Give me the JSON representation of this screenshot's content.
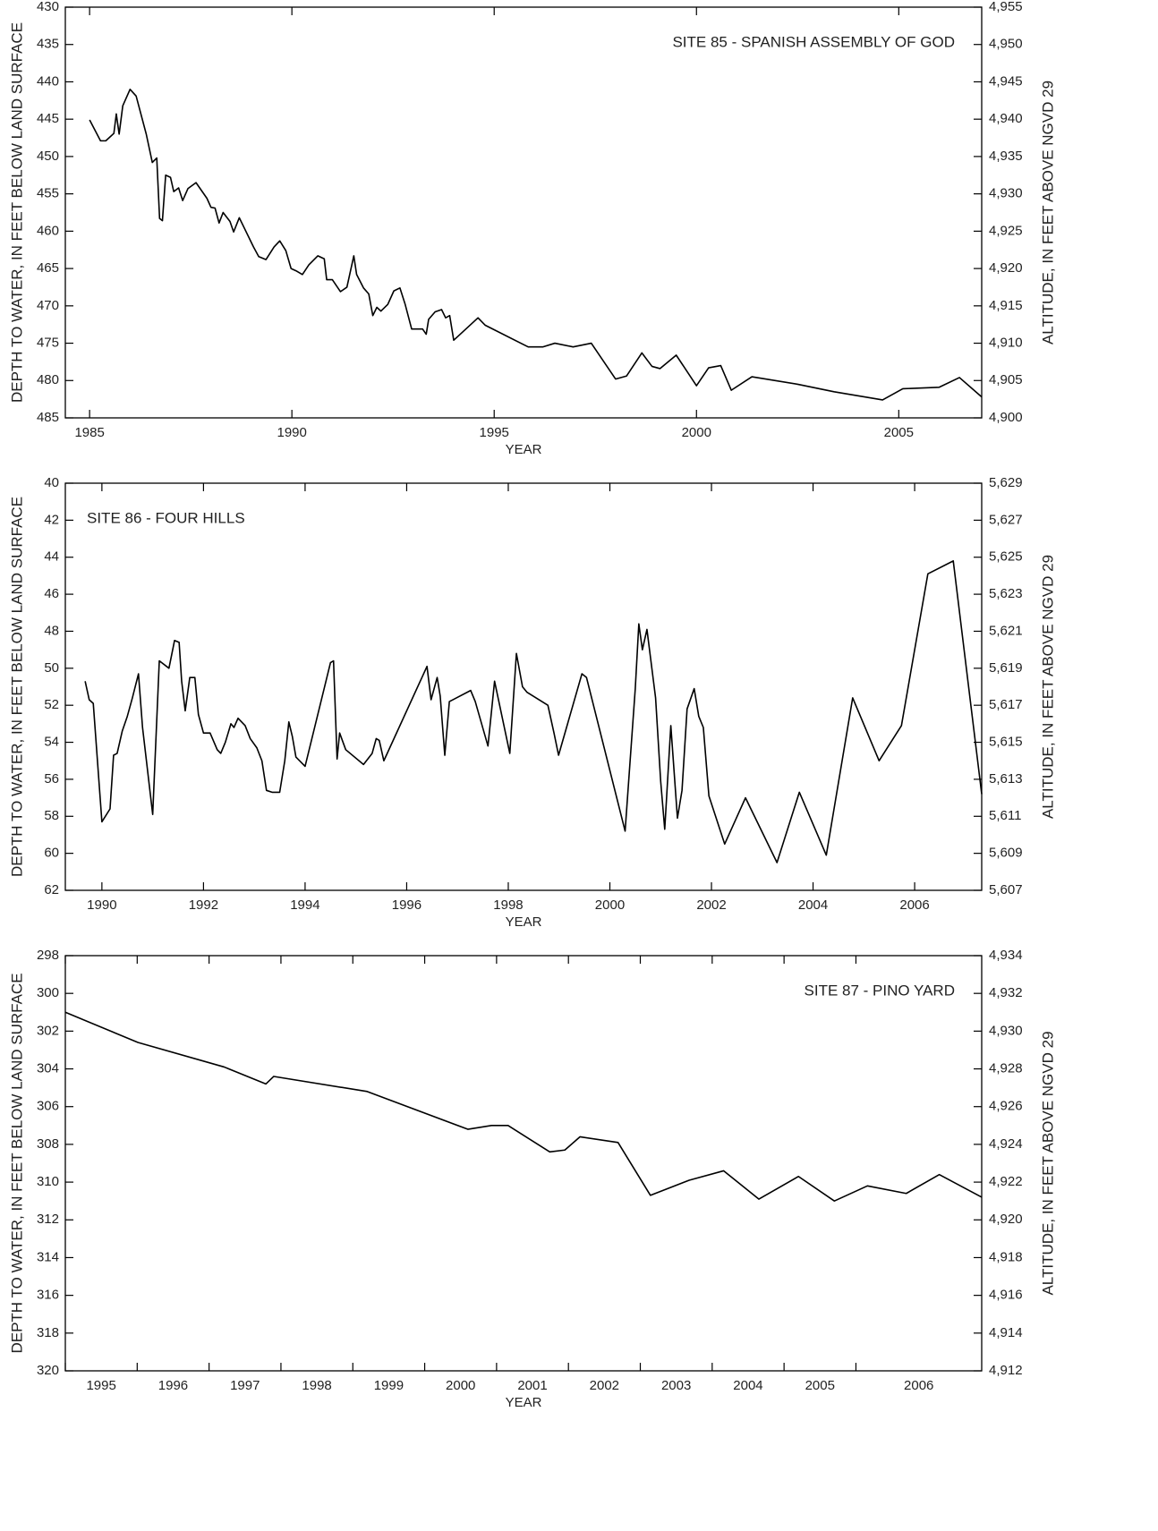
{
  "chart_data": [
    {
      "type": "line",
      "annotation": "SITE 85 - SPANISH ASSEMBLY OF GOD",
      "annotation_position": "right",
      "xlabel": "YEAR",
      "ylabel": "DEPTH TO WATER, IN FEET BELOW LAND SURFACE",
      "y2label": "ALTITUDE, IN FEET ABOVE NGVD 29",
      "color": "#000000",
      "xlim": [
        1984.4,
        2007.05
      ],
      "xticks": [
        1985,
        1990,
        1995,
        2000,
        2005
      ],
      "ylim": [
        485,
        430
      ],
      "yticks": [
        430,
        435,
        440,
        445,
        450,
        455,
        460,
        465,
        470,
        475,
        480,
        485
      ],
      "y2lim": [
        4900,
        4955
      ],
      "y2ticks": [
        {
          "value": 4955,
          "label": "4,955"
        },
        {
          "value": 4950,
          "label": "4,950"
        },
        {
          "value": 4945,
          "label": "4,945"
        },
        {
          "value": 4940,
          "label": "4,940"
        },
        {
          "value": 4935,
          "label": "4,935"
        },
        {
          "value": 4930,
          "label": "4,930"
        },
        {
          "value": 4925,
          "label": "4,925"
        },
        {
          "value": 4920,
          "label": "4,920"
        },
        {
          "value": 4915,
          "label": "4,915"
        },
        {
          "value": 4910,
          "label": "4,910"
        },
        {
          "value": 4905,
          "label": "4,905"
        },
        {
          "value": 4900,
          "label": "4,900"
        }
      ],
      "x": [
        1985.0,
        1985.27,
        1985.4,
        1985.6,
        1985.66,
        1985.73,
        1985.82,
        1986.0,
        1986.15,
        1986.4,
        1986.55,
        1986.66,
        1986.73,
        1986.8,
        1986.88,
        1987.0,
        1987.08,
        1987.2,
        1987.3,
        1987.43,
        1987.63,
        1987.9,
        1988.0,
        1988.1,
        1988.2,
        1988.3,
        1988.47,
        1988.56,
        1988.7,
        1989.05,
        1989.18,
        1989.36,
        1989.56,
        1989.7,
        1989.85,
        1989.98,
        1990.1,
        1990.26,
        1990.42,
        1990.64,
        1990.8,
        1990.86,
        1991.0,
        1991.2,
        1991.36,
        1991.53,
        1991.6,
        1991.77,
        1991.9,
        1992.0,
        1992.1,
        1992.2,
        1992.37,
        1992.52,
        1992.67,
        1992.8,
        1992.96,
        1993.23,
        1993.32,
        1993.38,
        1993.54,
        1993.7,
        1993.8,
        1993.9,
        1994.0,
        1994.6,
        1994.78,
        1995.84,
        1996.2,
        1996.5,
        1996.95,
        1997.4,
        1998.0,
        1998.27,
        1998.65,
        1998.9,
        1999.1,
        1999.5,
        2000.0,
        2000.3,
        2000.6,
        2000.86,
        2001.37,
        2002.5,
        2003.4,
        2004.6,
        2005.1,
        2006.0,
        2006.5,
        2007.05
      ],
      "values": [
        445.1,
        447.9,
        447.9,
        446.9,
        444.3,
        447.0,
        443.2,
        441.0,
        441.9,
        447.0,
        450.8,
        450.2,
        458.3,
        458.6,
        452.5,
        452.8,
        454.7,
        454.2,
        455.9,
        454.3,
        453.5,
        455.6,
        456.8,
        456.9,
        458.9,
        457.5,
        458.7,
        460.1,
        458.2,
        462.1,
        463.4,
        463.8,
        462.1,
        461.3,
        462.6,
        465.0,
        465.3,
        465.8,
        464.5,
        463.3,
        463.7,
        466.5,
        466.5,
        468.1,
        467.5,
        463.3,
        465.8,
        467.6,
        468.4,
        471.3,
        470.2,
        470.7,
        469.8,
        468.0,
        467.6,
        469.8,
        473.1,
        473.1,
        473.8,
        471.8,
        470.8,
        470.5,
        471.6,
        471.3,
        474.6,
        471.6,
        472.6,
        475.5,
        475.5,
        475.0,
        475.5,
        475.0,
        479.8,
        479.4,
        476.3,
        478.1,
        478.4,
        476.6,
        480.7,
        478.3,
        478.0,
        481.3,
        479.5,
        480.5,
        481.5,
        482.6,
        481.1,
        480.9,
        479.6,
        482.2
      ]
    },
    {
      "type": "line",
      "annotation": "SITE 86 - FOUR HILLS",
      "annotation_position": "left",
      "xlabel": "YEAR",
      "ylabel": "DEPTH TO WATER, IN FEET BELOW LAND SURFACE",
      "y2label": "ALTITUDE, IN FEET ABOVE NGVD 29",
      "color": "#000000",
      "xlim": [
        1989.28,
        2007.32
      ],
      "xticks": [
        1990,
        1992,
        1994,
        1996,
        1998,
        2000,
        2002,
        2004,
        2006
      ],
      "ylim": [
        62,
        40
      ],
      "yticks": [
        40,
        42,
        44,
        46,
        48,
        50,
        52,
        54,
        56,
        58,
        60,
        62
      ],
      "y2lim": [
        5607,
        5629
      ],
      "y2ticks": [
        {
          "value": 5629,
          "label": "5,629"
        },
        {
          "value": 5627,
          "label": "5,627"
        },
        {
          "value": 5625,
          "label": "5,625"
        },
        {
          "value": 5623,
          "label": "5,623"
        },
        {
          "value": 5621,
          "label": "5,621"
        },
        {
          "value": 5619,
          "label": "5,619"
        },
        {
          "value": 5617,
          "label": "5,617"
        },
        {
          "value": 5615,
          "label": "5,615"
        },
        {
          "value": 5613,
          "label": "5,613"
        },
        {
          "value": 5611,
          "label": "5,611"
        },
        {
          "value": 5609,
          "label": "5,609"
        },
        {
          "value": 5607,
          "label": "5,607"
        }
      ],
      "x": [
        1989.67,
        1989.75,
        1989.83,
        1990.0,
        1990.16,
        1990.23,
        1990.3,
        1990.4,
        1990.5,
        1990.6,
        1990.72,
        1990.8,
        1991.0,
        1991.13,
        1991.32,
        1991.43,
        1991.52,
        1991.57,
        1991.64,
        1991.73,
        1991.83,
        1991.9,
        1992.0,
        1992.13,
        1992.27,
        1992.34,
        1992.43,
        1992.54,
        1992.6,
        1992.68,
        1992.82,
        1992.92,
        1993.05,
        1993.15,
        1993.24,
        1993.35,
        1993.5,
        1993.6,
        1993.68,
        1993.75,
        1993.82,
        1994.0,
        1994.5,
        1994.56,
        1994.63,
        1994.68,
        1994.8,
        1995.15,
        1995.32,
        1995.4,
        1995.46,
        1995.55,
        1996.3,
        1996.4,
        1996.48,
        1996.6,
        1996.66,
        1996.75,
        1996.84,
        1997.26,
        1997.35,
        1997.6,
        1997.73,
        1998.03,
        1998.16,
        1998.28,
        1998.37,
        1998.78,
        1998.9,
        1998.99,
        1999.45,
        1999.54,
        2000.3,
        2000.5,
        2000.57,
        2000.64,
        2000.73,
        2000.9,
        2001.0,
        2001.08,
        2001.2,
        2001.33,
        2001.42,
        2001.52,
        2001.66,
        2001.75,
        2001.84,
        2001.95,
        2002.26,
        2002.67,
        2003.29,
        2003.73,
        2004.26,
        2004.78,
        2005.3,
        2005.74,
        2006.26,
        2006.76,
        2007.32
      ],
      "values": [
        50.7,
        51.7,
        51.9,
        58.3,
        57.6,
        54.7,
        54.6,
        53.4,
        52.6,
        51.6,
        50.3,
        53.2,
        57.9,
        49.6,
        50.0,
        48.5,
        48.6,
        50.7,
        52.3,
        50.5,
        50.5,
        52.5,
        53.5,
        53.5,
        54.4,
        54.6,
        54.0,
        53.0,
        53.2,
        52.7,
        53.1,
        53.8,
        54.3,
        55.0,
        56.6,
        56.7,
        56.7,
        55.0,
        52.9,
        53.7,
        54.8,
        55.3,
        49.7,
        49.6,
        54.9,
        53.5,
        54.4,
        55.2,
        54.6,
        53.8,
        53.9,
        55.0,
        50.5,
        49.9,
        51.7,
        50.5,
        51.5,
        54.7,
        51.8,
        51.2,
        51.8,
        54.2,
        50.7,
        54.6,
        49.2,
        51.0,
        51.3,
        52.0,
        53.5,
        54.7,
        50.3,
        50.5,
        58.8,
        51.1,
        47.6,
        49.0,
        47.9,
        51.6,
        56.1,
        58.7,
        53.1,
        58.1,
        56.6,
        52.2,
        51.1,
        52.6,
        53.2,
        56.9,
        59.5,
        57.0,
        60.5,
        56.7,
        60.1,
        51.6,
        55.0,
        53.1,
        44.9,
        44.2,
        56.8
      ]
    },
    {
      "type": "line",
      "annotation": "SITE 87 - PINO YARD",
      "annotation_position": "right",
      "xlabel": "YEAR",
      "ylabel": "DEPTH TO WATER, IN FEET BELOW LAND SURFACE",
      "y2label": "ALTITUDE, IN FEET ABOVE NGVD 29",
      "color": "#000000",
      "xtick_label_align": "between",
      "xlim": [
        1995,
        2007.75
      ],
      "xticks": [
        1995,
        1996,
        1997,
        1998,
        1999,
        2000,
        2001,
        2002,
        2003,
        2004,
        2005,
        2006
      ],
      "ylim": [
        320,
        298
      ],
      "yticks": [
        298,
        300,
        302,
        304,
        306,
        308,
        310,
        312,
        314,
        316,
        318,
        320
      ],
      "y2lim": [
        4912,
        4934
      ],
      "y2ticks": [
        {
          "value": 4934,
          "label": "4,934"
        },
        {
          "value": 4932,
          "label": "4,932"
        },
        {
          "value": 4930,
          "label": "4,930"
        },
        {
          "value": 4928,
          "label": "4,928"
        },
        {
          "value": 4926,
          "label": "4,926"
        },
        {
          "value": 4924,
          "label": "4,924"
        },
        {
          "value": 4922,
          "label": "4,922"
        },
        {
          "value": 4920,
          "label": "4,920"
        },
        {
          "value": 4918,
          "label": "4,918"
        },
        {
          "value": 4916,
          "label": "4,916"
        },
        {
          "value": 4914,
          "label": "4,914"
        },
        {
          "value": 4912,
          "label": "4,912"
        }
      ],
      "x": [
        1995.0,
        1996.01,
        1997.21,
        1997.79,
        1997.9,
        1999.2,
        2000.6,
        2000.93,
        2001.16,
        2001.74,
        2001.95,
        2002.16,
        2002.69,
        2003.14,
        2003.68,
        2004.16,
        2004.65,
        2005.2,
        2005.7,
        2006.16,
        2006.7,
        2007.16,
        2007.75
      ],
      "values": [
        301.0,
        302.6,
        303.9,
        304.8,
        304.4,
        305.2,
        307.2,
        307.0,
        307.0,
        308.4,
        308.3,
        307.6,
        307.9,
        310.7,
        309.9,
        309.4,
        310.9,
        309.7,
        311.0,
        310.2,
        310.6,
        309.6,
        310.8
      ]
    }
  ]
}
